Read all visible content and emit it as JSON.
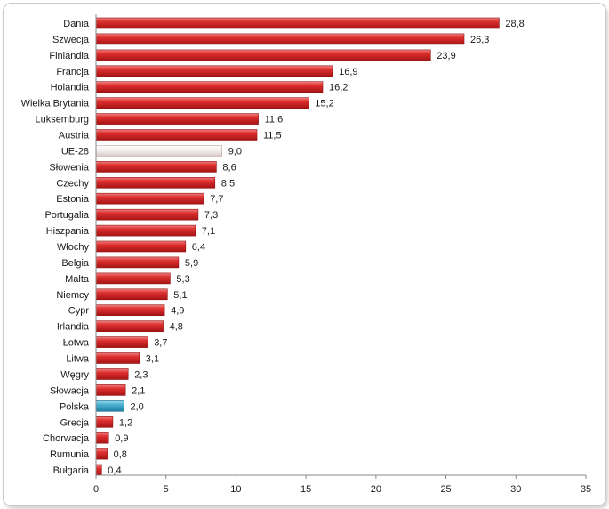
{
  "chart_data": {
    "type": "bar",
    "orientation": "horizontal",
    "categories": [
      "Dania",
      "Szwecja",
      "Finlandia",
      "Francja",
      "Holandia",
      "Wielka Brytania",
      "Luksemburg",
      "Austria",
      "UE-28",
      "Słowenia",
      "Czechy",
      "Estonia",
      "Portugalia",
      "Hiszpania",
      "Włochy",
      "Belgia",
      "Malta",
      "Niemcy",
      "Cypr",
      "Irlandia",
      "Łotwa",
      "Litwa",
      "Węgry",
      "Słowacja",
      "Polska",
      "Grecja",
      "Chorwacja",
      "Rumunia",
      "Bułgaria"
    ],
    "values": [
      28.8,
      26.3,
      23.9,
      16.9,
      16.2,
      15.2,
      11.6,
      11.5,
      9.0,
      8.6,
      8.5,
      7.7,
      7.3,
      7.1,
      6.4,
      5.9,
      5.3,
      5.1,
      4.9,
      4.8,
      3.7,
      3.1,
      2.3,
      2.1,
      2.0,
      1.2,
      0.9,
      0.8,
      0.4
    ],
    "value_labels": [
      "28,8",
      "26,3",
      "23,9",
      "16,9",
      "16,2",
      "15,2",
      "11,6",
      "11,5",
      "9,0",
      "8,6",
      "8,5",
      "7,7",
      "7,3",
      "7,1",
      "6,4",
      "5,9",
      "5,3",
      "5,1",
      "4,9",
      "4,8",
      "3,7",
      "3,1",
      "2,3",
      "2,1",
      "2,0",
      "1,2",
      "0,9",
      "0,8",
      "0,4"
    ],
    "xlim": [
      0,
      35
    ],
    "x_ticks": [
      0,
      5,
      10,
      15,
      20,
      25,
      30,
      35
    ],
    "grid": false,
    "legend": "none",
    "colors": {
      "default": "#d42a2a",
      "UE-28": "#f2ecec",
      "Polska": "#4bb2d4"
    }
  }
}
